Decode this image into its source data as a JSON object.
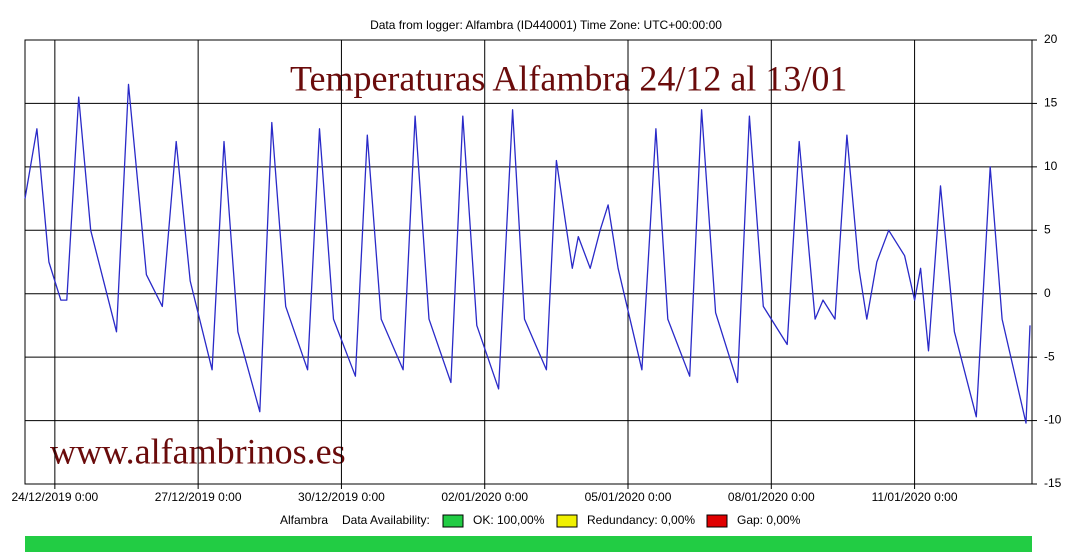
{
  "chart_data": {
    "type": "line",
    "title": "Data from logger: Alfambra (ID440001) Time Zone: UTC+00:00:00",
    "annotations": [
      "Temperaturas Alfambra 24/12 al 13/01",
      "www.alfambrinos.es"
    ],
    "x": [
      "23/12/2019 9:00",
      "23/12/2019 15:00",
      "23/12/2019 21:00",
      "24/12/2019 3:00",
      "24/12/2019 6:00",
      "24/12/2019 12:00",
      "24/12/2019 18:00",
      "25/12/2019 7:00",
      "25/12/2019 13:00",
      "25/12/2019 22:00",
      "26/12/2019 6:00",
      "26/12/2019 13:00",
      "26/12/2019 20:00",
      "27/12/2019 7:00",
      "27/12/2019 13:00",
      "27/12/2019 20:00",
      "28/12/2019 7:00",
      "28/12/2019 13:00",
      "28/12/2019 20:00",
      "29/12/2019 7:00",
      "29/12/2019 13:00",
      "29/12/2019 20:00",
      "30/12/2019 7:00",
      "30/12/2019 13:00",
      "30/12/2019 20:00",
      "31/12/2019 7:00",
      "31/12/2019 13:00",
      "31/12/2019 20:00",
      "01/01/2020 7:00",
      "01/01/2020 13:00",
      "01/01/2020 20:00",
      "02/01/2020 7:00",
      "02/01/2020 14:00",
      "02/01/2020 20:00",
      "03/01/2020 7:00",
      "03/01/2020 12:00",
      "03/01/2020 20:00",
      "03/01/2020 23:00",
      "04/01/2020 5:00",
      "04/01/2020 10:00",
      "04/01/2020 14:00",
      "04/01/2020 19:00",
      "05/01/2020 7:00",
      "05/01/2020 14:00",
      "05/01/2020 20:00",
      "06/01/2020 7:00",
      "06/01/2020 13:00",
      "06/01/2020 20:00",
      "07/01/2020 7:00",
      "07/01/2020 13:00",
      "07/01/2020 20:00",
      "08/01/2020 8:00",
      "08/01/2020 14:00",
      "08/01/2020 22:00",
      "09/01/2020 2:00",
      "09/01/2020 8:00",
      "09/01/2020 14:00",
      "09/01/2020 20:00",
      "10/01/2020 0:00",
      "10/01/2020 5:00",
      "10/01/2020 11:00",
      "10/01/2020 19:00",
      "11/01/2020 0:00",
      "11/01/2020 3:00",
      "11/01/2020 7:00",
      "11/01/2020 13:00",
      "11/01/2020 20:00",
      "12/01/2020 7:00",
      "12/01/2020 14:00",
      "12/01/2020 20:00",
      "13/01/2020 8:00",
      "13/01/2020 10:00"
    ],
    "series": [
      {
        "name": "Alfambra",
        "color": "#2a2ac8",
        "values": [
          7.5,
          13,
          2.5,
          -0.5,
          -0.5,
          15.5,
          5,
          -3,
          16.5,
          1.5,
          -1,
          12,
          1,
          -6,
          12,
          -3,
          -9.3,
          13.5,
          -1,
          -6,
          13,
          -2,
          -6.5,
          12.5,
          -2,
          -6,
          14,
          -2,
          -7,
          14,
          -2.5,
          -7.5,
          14.5,
          -2,
          -6,
          10.5,
          2,
          4.5,
          2,
          5,
          7,
          2,
          -6,
          13,
          -2,
          -6.5,
          14.5,
          -1.5,
          -7,
          14,
          -1,
          -4,
          12,
          -2,
          -0.5,
          -2,
          12.5,
          2,
          -2,
          2.5,
          5,
          3,
          -0.5,
          2,
          -4.5,
          8.5,
          -3,
          -9.7,
          10,
          -2,
          -10.2,
          -2.5
        ]
      }
    ],
    "xlim": [
      "23/12/2019 9:00",
      "13/01/2020 11:00"
    ],
    "xticks": [
      "24/12/2019 0:00",
      "27/12/2019 0:00",
      "30/12/2019 0:00",
      "02/01/2020 0:00",
      "05/01/2020 0:00",
      "08/01/2020 0:00",
      "11/01/2020 0:00"
    ],
    "ylim": [
      -15,
      20
    ],
    "yticks": [
      20,
      15,
      10,
      5,
      0,
      -5,
      -10,
      -15
    ],
    "grid": true
  },
  "availability": {
    "logger": "Alfambra",
    "label": "Data Availability:",
    "bar_color": "#22cc44",
    "items": [
      {
        "label": "OK: 100,00%",
        "color": "#22cc44"
      },
      {
        "label": "Redundancy: 0,00%",
        "color": "#f0f000"
      },
      {
        "label": "Gap: 0,00%",
        "color": "#e00000"
      }
    ]
  }
}
